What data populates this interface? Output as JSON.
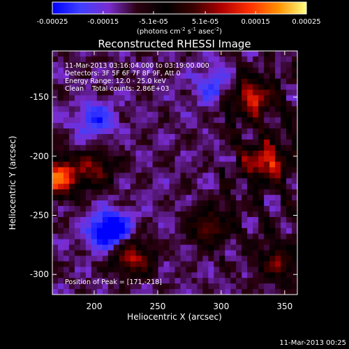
{
  "colorbar": {
    "ticks": [
      "-0.00025",
      "-0.00015",
      "-5.1e-05",
      "5.1e-05",
      "0.00015",
      "0.00025"
    ],
    "tick_values": [
      -0.00025,
      -0.00015,
      -5.1e-05,
      5.1e-05,
      0.00015,
      0.00025
    ],
    "range": [
      -0.00025,
      0.00025
    ],
    "units_main": "(photons cm",
    "units_exp1": "-2",
    "units_mid": " s",
    "units_exp2": "-1",
    "units_end": " asec",
    "units_exp3": "-2",
    "units_close": ")",
    "colormap_stops": [
      "#0000ff",
      "#4040ff",
      "#7a2cd0",
      "#2b0010",
      "#000000",
      "#3a0000",
      "#b00000",
      "#ff3000",
      "#ff9000",
      "#ffff80"
    ]
  },
  "chart_data": {
    "type": "heatmap",
    "title": "Reconstructed RHESSI Image",
    "xlabel": "Heliocentric X (arcsec)",
    "ylabel": "Heliocentric Y (arcsec)",
    "xlim": [
      167,
      360
    ],
    "ylim": [
      -317,
      -111
    ],
    "xticks": [
      200,
      250,
      300,
      350
    ],
    "yticks": [
      -150,
      -200,
      -250,
      -300
    ],
    "peak": [
      171,
      -218
    ],
    "peak_value": 0.00025,
    "bright_sources": [
      {
        "x": 171,
        "y": -218,
        "level": 1.0
      },
      {
        "x": 325,
        "y": -150,
        "level": 0.75
      },
      {
        "x": 335,
        "y": -205,
        "level": 0.75
      },
      {
        "x": 230,
        "y": -285,
        "level": 0.7
      },
      {
        "x": 200,
        "y": -210,
        "level": 0.55
      },
      {
        "x": 290,
        "y": -260,
        "level": 0.55
      },
      {
        "x": 345,
        "y": -290,
        "level": 0.5
      }
    ],
    "dark_sources": [
      {
        "x": 213,
        "y": -263,
        "level": -0.8
      },
      {
        "x": 200,
        "y": -170,
        "level": -0.4
      },
      {
        "x": 295,
        "y": -140,
        "level": -0.35
      }
    ]
  },
  "annotation": {
    "line1": "11-Mar-2013 03:16:04.000 to 03:19:00.000",
    "line2": "Detectors: 3F 5F 6F 7F 8F 9F, Att 0",
    "line3": "Energy Range: 12.0 - 25.0 keV",
    "line4": "Clean    Total counts: 2.86E+03",
    "peak_text": "Position of Peak = [171,-218]"
  },
  "footer": {
    "timestamp": "11-Mar-2013 00:25"
  }
}
